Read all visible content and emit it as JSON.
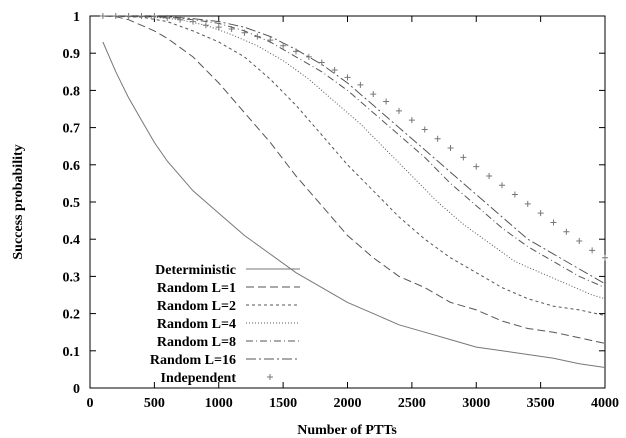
{
  "chart_data": {
    "type": "line",
    "xlabel": "Number of PTTs",
    "ylabel": "Success probability",
    "xlim": [
      0,
      4000
    ],
    "ylim": [
      0,
      1
    ],
    "xticks": [
      "0",
      "500",
      "1000",
      "1500",
      "2000",
      "2500",
      "3000",
      "3500",
      "4000"
    ],
    "yticks": [
      "0",
      "0.1",
      "0.2",
      "0.3",
      "0.4",
      "0.5",
      "0.6",
      "0.7",
      "0.8",
      "0.9",
      "1"
    ],
    "grid": false,
    "legend_position": "bottom-left",
    "series": [
      {
        "name": "Deterministic",
        "style": "solid",
        "color": "#777777",
        "points": [
          [
            100,
            0.93
          ],
          [
            200,
            0.85
          ],
          [
            300,
            0.78
          ],
          [
            400,
            0.72
          ],
          [
            500,
            0.66
          ],
          [
            600,
            0.61
          ],
          [
            800,
            0.53
          ],
          [
            1000,
            0.47
          ],
          [
            1200,
            0.41
          ],
          [
            1400,
            0.36
          ],
          [
            1600,
            0.31
          ],
          [
            1800,
            0.27
          ],
          [
            2000,
            0.23
          ],
          [
            2200,
            0.2
          ],
          [
            2400,
            0.17
          ],
          [
            2600,
            0.15
          ],
          [
            2800,
            0.13
          ],
          [
            3000,
            0.11
          ],
          [
            3200,
            0.1
          ],
          [
            3400,
            0.09
          ],
          [
            3600,
            0.08
          ],
          [
            3800,
            0.065
          ],
          [
            4000,
            0.055
          ]
        ]
      },
      {
        "name": "Random L=1",
        "style": "longdash",
        "color": "#555555",
        "points": [
          [
            100,
            1.0
          ],
          [
            200,
            0.998
          ],
          [
            300,
            0.99
          ],
          [
            400,
            0.975
          ],
          [
            500,
            0.96
          ],
          [
            600,
            0.94
          ],
          [
            800,
            0.89
          ],
          [
            1000,
            0.82
          ],
          [
            1200,
            0.74
          ],
          [
            1400,
            0.66
          ],
          [
            1600,
            0.57
          ],
          [
            1800,
            0.49
          ],
          [
            2000,
            0.41
          ],
          [
            2200,
            0.35
          ],
          [
            2400,
            0.3
          ],
          [
            2600,
            0.27
          ],
          [
            2800,
            0.23
          ],
          [
            3000,
            0.21
          ],
          [
            3200,
            0.18
          ],
          [
            3400,
            0.16
          ],
          [
            3600,
            0.15
          ],
          [
            3800,
            0.135
          ],
          [
            4000,
            0.12
          ]
        ]
      },
      {
        "name": "Random L=2",
        "style": "shortdash",
        "color": "#555555",
        "points": [
          [
            100,
            1.0
          ],
          [
            400,
            0.997
          ],
          [
            600,
            0.985
          ],
          [
            800,
            0.96
          ],
          [
            1000,
            0.93
          ],
          [
            1200,
            0.89
          ],
          [
            1400,
            0.83
          ],
          [
            1600,
            0.76
          ],
          [
            1800,
            0.68
          ],
          [
            2000,
            0.6
          ],
          [
            2200,
            0.53
          ],
          [
            2400,
            0.46
          ],
          [
            2600,
            0.4
          ],
          [
            2800,
            0.35
          ],
          [
            3000,
            0.31
          ],
          [
            3200,
            0.27
          ],
          [
            3400,
            0.24
          ],
          [
            3600,
            0.22
          ],
          [
            3800,
            0.21
          ],
          [
            4000,
            0.195
          ]
        ]
      },
      {
        "name": "Random L=4",
        "style": "dotted",
        "color": "#555555",
        "points": [
          [
            100,
            1.0
          ],
          [
            500,
            0.997
          ],
          [
            700,
            0.99
          ],
          [
            900,
            0.975
          ],
          [
            1100,
            0.95
          ],
          [
            1300,
            0.92
          ],
          [
            1500,
            0.88
          ],
          [
            1700,
            0.83
          ],
          [
            1900,
            0.77
          ],
          [
            2100,
            0.71
          ],
          [
            2300,
            0.64
          ],
          [
            2500,
            0.57
          ],
          [
            2700,
            0.5
          ],
          [
            2900,
            0.44
          ],
          [
            3100,
            0.39
          ],
          [
            3300,
            0.34
          ],
          [
            3500,
            0.31
          ],
          [
            3700,
            0.28
          ],
          [
            3900,
            0.25
          ],
          [
            4000,
            0.24
          ]
        ]
      },
      {
        "name": "Random L=8",
        "style": "dashdot",
        "color": "#555555",
        "points": [
          [
            100,
            1.0
          ],
          [
            600,
            0.997
          ],
          [
            800,
            0.99
          ],
          [
            1000,
            0.98
          ],
          [
            1200,
            0.96
          ],
          [
            1400,
            0.93
          ],
          [
            1600,
            0.89
          ],
          [
            1800,
            0.85
          ],
          [
            2000,
            0.8
          ],
          [
            2200,
            0.74
          ],
          [
            2400,
            0.68
          ],
          [
            2600,
            0.62
          ],
          [
            2800,
            0.55
          ],
          [
            3000,
            0.49
          ],
          [
            3200,
            0.43
          ],
          [
            3400,
            0.38
          ],
          [
            3600,
            0.34
          ],
          [
            3800,
            0.3
          ],
          [
            4000,
            0.27
          ]
        ]
      },
      {
        "name": "Random L=16",
        "style": "dashdotlong",
        "color": "#555555",
        "points": [
          [
            100,
            1.0
          ],
          [
            600,
            0.998
          ],
          [
            800,
            0.993
          ],
          [
            1000,
            0.985
          ],
          [
            1200,
            0.97
          ],
          [
            1400,
            0.945
          ],
          [
            1600,
            0.91
          ],
          [
            1800,
            0.87
          ],
          [
            2000,
            0.82
          ],
          [
            2200,
            0.76
          ],
          [
            2400,
            0.7
          ],
          [
            2600,
            0.64
          ],
          [
            2800,
            0.58
          ],
          [
            3000,
            0.52
          ],
          [
            3200,
            0.46
          ],
          [
            3400,
            0.4
          ],
          [
            3600,
            0.36
          ],
          [
            3800,
            0.32
          ],
          [
            4000,
            0.28
          ]
        ]
      },
      {
        "name": "Independent",
        "style": "markers",
        "color": "#777777",
        "points": [
          [
            100,
            1.0
          ],
          [
            200,
            1.0
          ],
          [
            300,
            1.0
          ],
          [
            400,
            1.0
          ],
          [
            500,
            1.0
          ],
          [
            600,
            0.995
          ],
          [
            700,
            0.99
          ],
          [
            800,
            0.985
          ],
          [
            900,
            0.975
          ],
          [
            1000,
            0.97
          ],
          [
            1100,
            0.965
          ],
          [
            1200,
            0.955
          ],
          [
            1300,
            0.945
          ],
          [
            1400,
            0.935
          ],
          [
            1500,
            0.92
          ],
          [
            1600,
            0.905
          ],
          [
            1700,
            0.89
          ],
          [
            1800,
            0.875
          ],
          [
            1900,
            0.855
          ],
          [
            2000,
            0.835
          ],
          [
            2100,
            0.815
          ],
          [
            2200,
            0.79
          ],
          [
            2300,
            0.77
          ],
          [
            2400,
            0.745
          ],
          [
            2500,
            0.72
          ],
          [
            2600,
            0.695
          ],
          [
            2700,
            0.67
          ],
          [
            2800,
            0.645
          ],
          [
            2900,
            0.62
          ],
          [
            3000,
            0.595
          ],
          [
            3100,
            0.57
          ],
          [
            3200,
            0.545
          ],
          [
            3300,
            0.52
          ],
          [
            3400,
            0.495
          ],
          [
            3500,
            0.47
          ],
          [
            3600,
            0.445
          ],
          [
            3700,
            0.42
          ],
          [
            3800,
            0.395
          ],
          [
            3900,
            0.37
          ],
          [
            4000,
            0.35
          ]
        ]
      }
    ]
  }
}
